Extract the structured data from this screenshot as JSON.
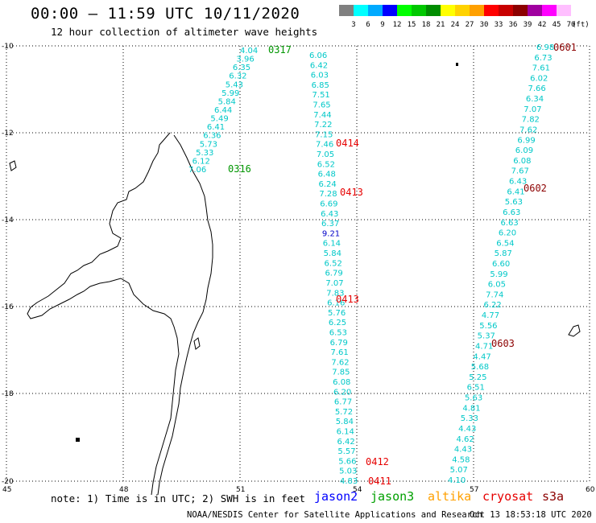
{
  "header": {
    "title": "00:00 – 11:59 UTC 10/11/2020",
    "subtitle": "12 hour collection of altimeter wave heights"
  },
  "color_scale": {
    "unit": "(ft)",
    "bins": [
      {
        "label": "3",
        "color": "#808080"
      },
      {
        "label": "6",
        "color": "#00ffff"
      },
      {
        "label": "9",
        "color": "#00aaff"
      },
      {
        "label": "12",
        "color": "#0000ff"
      },
      {
        "label": "15",
        "color": "#00ff00"
      },
      {
        "label": "18",
        "color": "#00c800"
      },
      {
        "label": "21",
        "color": "#008c00"
      },
      {
        "label": "24",
        "color": "#ffff00"
      },
      {
        "label": "27",
        "color": "#ffd200"
      },
      {
        "label": "30",
        "color": "#ffa000"
      },
      {
        "label": "33",
        "color": "#ff0000"
      },
      {
        "label": "36",
        "color": "#c80000"
      },
      {
        "label": "39",
        "color": "#8c0000"
      },
      {
        "label": "42",
        "color": "#a000a0"
      },
      {
        "label": "45",
        "color": "#ff00ff"
      },
      {
        "label": "70",
        "color": "#ffbfff"
      }
    ]
  },
  "axes": {
    "lat_labels": [
      "-10",
      "-12",
      "-14",
      "-16",
      "-18",
      "-20"
    ],
    "lon_labels": [
      "45",
      "48",
      "51",
      "54",
      "57",
      "60"
    ]
  },
  "tracks": {
    "track_a": {
      "color": "#00c8c8",
      "values": [
        "4.04",
        "3.96",
        "6.35",
        "6.32",
        "5.43",
        "5.99",
        "5.84",
        "6.44",
        "5.49",
        "6.41",
        "6.36",
        "5.73",
        "5.33",
        "6.12",
        "7.06"
      ]
    },
    "track_b": {
      "color": "#00c8c8",
      "values": [
        "6.06",
        "6.42",
        "6.03",
        "6.85",
        "7.51",
        "7.65",
        "7.44",
        "7.22",
        "7.15",
        "7.46",
        "7.05",
        "6.52",
        "6.48",
        "6.24",
        "7.28",
        "6.69",
        "6.43",
        "6.37",
        "9.21",
        "6.14",
        "5.84",
        "6.52",
        "6.79",
        "7.07",
        "7.83",
        "6.16",
        "5.76",
        "6.25",
        "6.53",
        "6.79",
        "7.61",
        "7.62",
        "7.85",
        "6.08",
        "6.20",
        "6.77",
        "5.72",
        "5.84",
        "6.14",
        "6.42",
        "5.57",
        "5.66",
        "5.03",
        "4.83"
      ],
      "highlight_value": "9.21",
      "highlight_color": "#0000c8"
    },
    "track_c": {
      "color": "#00c8c8",
      "values": [
        "6.98",
        "6.73",
        "7.61",
        "6.02",
        "7.66",
        "6.34",
        "7.07",
        "7.82",
        "7.62",
        "6.99",
        "6.09",
        "6.08",
        "7.67",
        "6.43",
        "6.41",
        "5.63",
        "6.63",
        "6.63",
        "6.20",
        "6.54",
        "5.87",
        "6.60",
        "5.99",
        "6.05",
        "7.74",
        "6.22",
        "4.77",
        "5.56",
        "5.37",
        "4.71",
        "4.47",
        "5.68",
        "5.25",
        "6.51",
        "5.63",
        "4.81",
        "5.33",
        "4.43",
        "4.62",
        "4.43",
        "4.58",
        "5.07",
        "4.10"
      ]
    }
  },
  "pass_labels": [
    {
      "text": "0317",
      "color": "#009600"
    },
    {
      "text": "0316",
      "color": "#009600"
    },
    {
      "text": "0414",
      "color": "#e60000"
    },
    {
      "text": "0413",
      "color": "#e60000"
    },
    {
      "text": "0413",
      "color": "#e60000"
    },
    {
      "text": "0412",
      "color": "#e60000"
    },
    {
      "text": "0411",
      "color": "#e60000"
    },
    {
      "text": "0601",
      "color": "#8c0000"
    },
    {
      "text": "0602",
      "color": "#8c0000"
    },
    {
      "text": "0603",
      "color": "#8c0000"
    }
  ],
  "footer": {
    "note": "note: 1) Time is in UTC; 2) SWH is in feet",
    "legend": [
      {
        "name": "jason2",
        "color": "#0000ff"
      },
      {
        "name": "jason3",
        "color": "#00a000"
      },
      {
        "name": "altika",
        "color": "#ffa000"
      },
      {
        "name": "cryosat",
        "color": "#e60000"
      },
      {
        "name": "s3a",
        "color": "#8c0000"
      }
    ],
    "credit": "NOAA/NESDIS Center for Satellite Applications and Research",
    "timestamp": "Oct 13 18:53:18 UTC 2020"
  }
}
